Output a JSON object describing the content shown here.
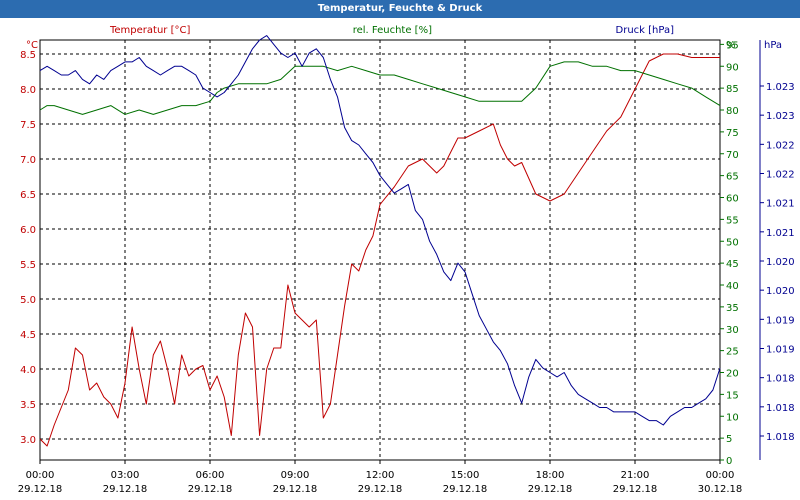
{
  "window": {
    "title": "Temperatur, Feuchte & Druck"
  },
  "chart_data": {
    "type": "line",
    "grid": true,
    "x_ticks": [
      {
        "time": "00:00",
        "date": "29.12.18"
      },
      {
        "time": "03:00",
        "date": "29.12.18"
      },
      {
        "time": "06:00",
        "date": "29.12.18"
      },
      {
        "time": "09:00",
        "date": "29.12.18"
      },
      {
        "time": "12:00",
        "date": "29.12.18"
      },
      {
        "time": "15:00",
        "date": "29.12.18"
      },
      {
        "time": "18:00",
        "date": "29.12.18"
      },
      {
        "time": "21:00",
        "date": "29.12.18"
      },
      {
        "time": "00:00",
        "date": "30.12.18"
      }
    ],
    "axes": {
      "temperature": {
        "label": "°C",
        "range": [
          2.7,
          8.7
        ],
        "ticks": [
          "3.0",
          "3.5",
          "4.0",
          "4.5",
          "5.0",
          "5.5",
          "6.0",
          "6.5",
          "7.0",
          "7.5",
          "8.0",
          "8.5"
        ],
        "color": "#c00000"
      },
      "humidity": {
        "label": "%",
        "range": [
          0,
          96
        ],
        "ticks": [
          "0",
          "5",
          "10",
          "15",
          "20",
          "25",
          "30",
          "35",
          "40",
          "45",
          "50",
          "55",
          "60",
          "65",
          "70",
          "75",
          "80",
          "85",
          "90",
          "95"
        ],
        "color": "#007000"
      },
      "pressure": {
        "label": "hPa",
        "ticks": [
          "1.018",
          "1.018",
          "1.018",
          "1.019",
          "1.019",
          "1.020",
          "1.020",
          "1.021",
          "1.021",
          "1.022",
          "1.022",
          "1.023",
          "1.023"
        ],
        "color": "#000090"
      }
    },
    "series": [
      {
        "name": "Temperatur [°C]",
        "axis": "temperature",
        "color": "#c00000",
        "x": [
          0,
          0.25,
          0.5,
          1,
          1.25,
          1.5,
          1.75,
          2,
          2.25,
          2.5,
          2.75,
          3,
          3.25,
          3.5,
          3.75,
          4,
          4.25,
          4.5,
          4.75,
          5,
          5.25,
          5.5,
          5.75,
          6,
          6.25,
          6.5,
          6.75,
          7,
          7.25,
          7.5,
          7.75,
          8,
          8.25,
          8.5,
          8.75,
          9,
          9.25,
          9.5,
          9.75,
          10,
          10.25,
          10.5,
          10.75,
          11,
          11.25,
          11.5,
          11.75,
          12,
          12.5,
          13,
          13.5,
          14,
          14.25,
          14.5,
          14.75,
          15,
          15.5,
          16,
          16.25,
          16.5,
          16.75,
          17,
          17.5,
          18,
          18.5,
          19,
          19.5,
          20,
          20.5,
          21,
          21.5,
          22,
          22.5,
          23,
          23.5,
          24
        ],
        "values": [
          3.0,
          2.9,
          3.2,
          3.7,
          4.3,
          4.2,
          3.7,
          3.8,
          3.6,
          3.5,
          3.3,
          3.8,
          4.6,
          4.0,
          3.5,
          4.2,
          4.4,
          4.0,
          3.5,
          4.2,
          3.9,
          4.0,
          4.05,
          3.7,
          3.9,
          3.6,
          3.05,
          4.2,
          4.8,
          4.6,
          3.05,
          4.0,
          4.3,
          4.3,
          5.2,
          4.8,
          4.7,
          4.6,
          4.7,
          3.3,
          3.5,
          4.2,
          4.9,
          5.5,
          5.4,
          5.7,
          5.9,
          6.35,
          6.6,
          6.9,
          7.0,
          6.8,
          6.9,
          7.1,
          7.3,
          7.3,
          7.4,
          7.5,
          7.2,
          7.0,
          6.9,
          6.95,
          6.5,
          6.4,
          6.5,
          6.8,
          7.1,
          7.4,
          7.6,
          8.0,
          8.4,
          8.5,
          8.5,
          8.45,
          8.45,
          8.45
        ]
      },
      {
        "name": "rel. Feuchte [%]",
        "axis": "humidity",
        "color": "#007000",
        "x": [
          0,
          0.25,
          0.5,
          1,
          1.5,
          2,
          2.5,
          3,
          3.5,
          4,
          4.5,
          5,
          5.5,
          6,
          6.25,
          6.5,
          7,
          7.5,
          8,
          8.5,
          9,
          9.5,
          10,
          10.5,
          11,
          11.5,
          12,
          12.5,
          13,
          13.5,
          14,
          14.5,
          15,
          15.5,
          16,
          16.5,
          17,
          17.5,
          18,
          18.5,
          19,
          19.5,
          20,
          20.5,
          21,
          21.5,
          22,
          22.5,
          23,
          23.5,
          24
        ],
        "values": [
          80,
          81,
          81,
          80,
          79,
          80,
          81,
          79,
          80,
          79,
          80,
          81,
          81,
          82,
          84,
          85,
          86,
          86,
          86,
          87,
          90,
          90,
          90,
          89,
          90,
          89,
          88,
          88,
          87,
          86,
          85,
          84,
          83,
          82,
          82,
          82,
          82,
          85,
          90,
          91,
          91,
          90,
          90,
          89,
          89,
          88,
          87,
          86,
          85,
          83,
          81
        ]
      },
      {
        "name": "Druck [hPa]",
        "axis": "pressure",
        "color": "#000090",
        "x": [
          0,
          0.25,
          0.5,
          0.75,
          1,
          1.25,
          1.5,
          1.75,
          2,
          2.25,
          2.5,
          2.75,
          3,
          3.25,
          3.5,
          3.75,
          4,
          4.25,
          4.5,
          4.75,
          5,
          5.25,
          5.5,
          5.75,
          6,
          6.25,
          6.5,
          6.75,
          7,
          7.25,
          7.5,
          7.75,
          8,
          8.25,
          8.5,
          8.75,
          9,
          9.25,
          9.5,
          9.75,
          10,
          10.25,
          10.5,
          10.75,
          11,
          11.25,
          11.5,
          11.75,
          12,
          12.25,
          12.5,
          12.75,
          13,
          13.25,
          13.5,
          13.75,
          14,
          14.25,
          14.5,
          14.75,
          15,
          15.25,
          15.5,
          15.75,
          16,
          16.25,
          16.5,
          16.75,
          17,
          17.25,
          17.5,
          17.75,
          18,
          18.25,
          18.5,
          18.75,
          19,
          19.25,
          19.5,
          19.75,
          20,
          20.25,
          20.5,
          20.75,
          21,
          21.25,
          21.5,
          21.75,
          22,
          22.25,
          22.5,
          22.75,
          23,
          23.25,
          23.5,
          23.75,
          24
        ],
        "values": [
          89,
          90,
          89,
          88,
          88,
          89,
          87,
          86,
          88,
          87,
          89,
          90,
          91,
          91,
          92,
          90,
          89,
          88,
          89,
          90,
          90,
          89,
          88,
          85,
          84,
          83,
          84,
          86,
          88,
          91,
          94,
          96,
          97,
          95,
          93,
          92,
          93,
          90,
          93,
          94,
          92,
          87,
          83,
          76,
          73,
          72,
          70,
          68,
          65,
          63,
          61,
          62,
          63,
          57,
          55,
          50,
          47,
          43,
          41,
          45,
          43,
          38,
          33,
          30,
          27,
          25,
          22,
          17,
          13,
          19,
          23,
          21,
          20,
          19,
          20,
          17,
          15,
          14,
          13,
          12,
          12,
          11,
          11,
          11,
          11,
          10,
          9,
          9,
          8,
          10,
          11,
          12,
          12,
          13,
          14,
          16,
          21
        ]
      }
    ]
  }
}
